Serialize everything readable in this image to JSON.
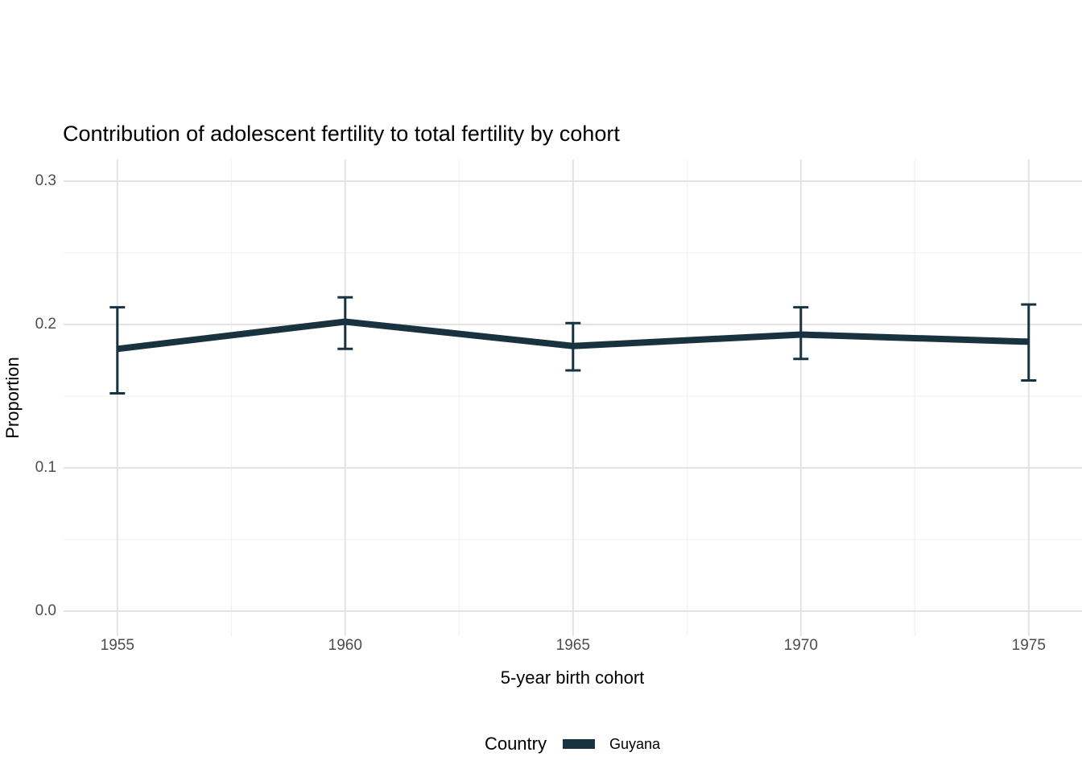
{
  "chart_data": {
    "type": "line",
    "title": "Contribution of adolescent fertility to total fertility by cohort",
    "xlabel": "5-year birth cohort",
    "ylabel": "Proportion",
    "x": [
      1955,
      1960,
      1965,
      1970,
      1975
    ],
    "series": [
      {
        "name": "Guyana",
        "values": [
          0.183,
          0.202,
          0.185,
          0.193,
          0.188
        ],
        "ymin": [
          0.152,
          0.183,
          0.168,
          0.176,
          0.161
        ],
        "ymax": [
          0.212,
          0.219,
          0.201,
          0.212,
          0.214
        ],
        "color": "#18333F"
      }
    ],
    "x_ticks": {
      "values": [
        1955,
        1960,
        1965,
        1970,
        1975
      ],
      "labels": [
        "1955",
        "1960",
        "1965",
        "1970",
        "1975"
      ]
    },
    "y_ticks": {
      "values": [
        0.0,
        0.1,
        0.2,
        0.3
      ],
      "labels": [
        "0.0",
        "0.1",
        "0.2",
        "0.3"
      ]
    },
    "xlim": [
      1953.82,
      1976.17
    ],
    "ylim": [
      -0.0174,
      0.3152
    ],
    "grid": true,
    "legend": {
      "title": "Country",
      "position": "bottom",
      "items": [
        {
          "label": "Guyana",
          "color": "#18333F"
        }
      ]
    }
  },
  "style": {
    "background": "#ffffff",
    "grid_major_color": "#e3e3e3",
    "grid_minor_color": "#efefef",
    "tick_label_color": "#4d4d4d",
    "text_color": "#000000",
    "line_color": "#18333F"
  }
}
